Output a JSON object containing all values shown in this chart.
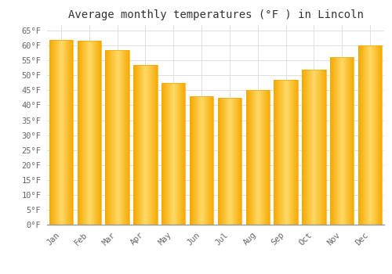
{
  "title": "Average monthly temperatures (°F ) in Lincoln",
  "months": [
    "Jan",
    "Feb",
    "Mar",
    "Apr",
    "May",
    "Jun",
    "Jul",
    "Aug",
    "Sep",
    "Oct",
    "Nov",
    "Dec"
  ],
  "values": [
    62,
    61.5,
    58.5,
    53.5,
    47.5,
    43,
    42.5,
    45,
    48.5,
    52,
    56,
    60
  ],
  "bar_color_center": "#FFD966",
  "bar_color_edge": "#F5A800",
  "background_color": "#FFFFFF",
  "grid_color": "#E0E0E0",
  "ylim": [
    0,
    67
  ],
  "yticks": [
    0,
    5,
    10,
    15,
    20,
    25,
    30,
    35,
    40,
    45,
    50,
    55,
    60,
    65
  ],
  "title_fontsize": 10,
  "tick_fontsize": 7.5,
  "bar_width": 0.85
}
